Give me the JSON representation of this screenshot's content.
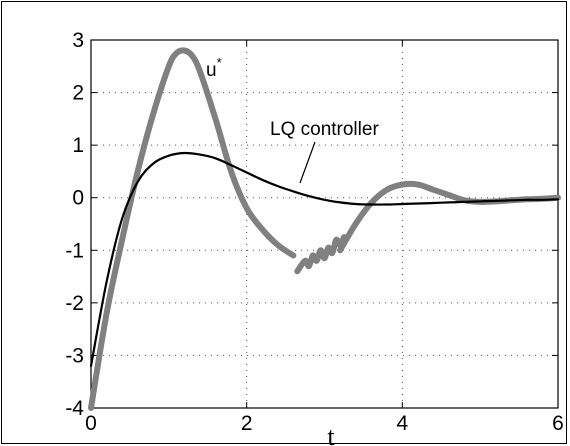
{
  "chart_data": {
    "type": "line",
    "xlabel": "t",
    "ylabel": "",
    "xlim": [
      0,
      6
    ],
    "ylim": [
      -4,
      3
    ],
    "xticks": [
      0,
      2,
      4,
      6
    ],
    "yticks": [
      3,
      2,
      1,
      0,
      -1,
      -2,
      -3,
      -4
    ],
    "xtick_labels": [
      "0",
      "2",
      "4",
      "6"
    ],
    "ytick_labels": [
      "3",
      "2",
      "1",
      "0",
      "-1",
      "-2",
      "-3",
      "-4"
    ],
    "grid": true,
    "grid_style": "dotted",
    "annotations": {
      "u_star": {
        "base": "u",
        "sup": "*"
      },
      "lq": "LQ controller"
    },
    "series": [
      {
        "name": "u*",
        "color": "#808080",
        "segments": [
          {
            "x": [
              0,
              0.2,
              0.4,
              0.6,
              0.8,
              1.0,
              1.1,
              1.2,
              1.3,
              1.4,
              1.6,
              1.8,
              2.0,
              2.2,
              2.4,
              2.6
            ],
            "y": [
              -4.0,
              -2.2,
              -0.8,
              0.5,
              1.6,
              2.5,
              2.75,
              2.8,
              2.7,
              2.4,
              1.5,
              0.5,
              -0.2,
              -0.6,
              -0.9,
              -1.1
            ]
          },
          {
            "x": [
              2.65,
              2.75,
              2.8,
              2.85,
              2.9,
              2.95,
              3.0,
              3.05,
              3.1,
              3.15,
              3.2,
              3.25
            ],
            "y": [
              -1.4,
              -1.2,
              -1.3,
              -1.1,
              -1.2,
              -1.0,
              -1.15,
              -0.95,
              -1.05,
              -0.8,
              -0.9,
              -0.75
            ]
          },
          {
            "x": [
              3.2,
              3.4,
              3.6,
              3.8,
              4.0,
              4.2,
              4.4,
              4.6,
              4.8,
              5.0,
              5.2,
              5.4,
              5.6,
              5.8,
              6.0
            ],
            "y": [
              -1.0,
              -0.5,
              -0.1,
              0.15,
              0.25,
              0.25,
              0.15,
              0.05,
              -0.05,
              -0.08,
              -0.07,
              -0.05,
              -0.03,
              -0.02,
              0.0
            ]
          }
        ]
      },
      {
        "name": "LQ controller",
        "color": "#000000",
        "segments": [
          {
            "x": [
              0,
              0.2,
              0.4,
              0.6,
              0.8,
              1.0,
              1.2,
              1.4,
              1.6,
              1.8,
              2.0,
              2.2,
              2.4,
              2.6,
              2.8,
              3.0,
              3.2,
              3.4,
              3.6,
              3.8,
              4.0,
              4.2,
              4.4,
              4.6,
              4.8,
              5.0,
              5.2,
              5.4,
              5.6,
              5.8,
              6.0
            ],
            "y": [
              -3.2,
              -1.6,
              -0.4,
              0.3,
              0.65,
              0.8,
              0.85,
              0.82,
              0.75,
              0.62,
              0.48,
              0.34,
              0.22,
              0.12,
              0.03,
              -0.04,
              -0.09,
              -0.12,
              -0.13,
              -0.13,
              -0.12,
              -0.11,
              -0.1,
              -0.09,
              -0.08,
              -0.07,
              -0.06,
              -0.05,
              -0.04,
              -0.04,
              -0.03
            ]
          }
        ]
      }
    ]
  }
}
